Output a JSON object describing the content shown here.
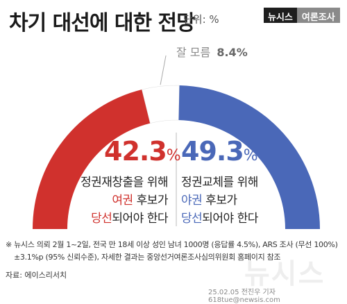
{
  "header": {
    "title": "차기 대선에 대한 전망",
    "unit": "단위: %",
    "badge_brand": "뉴시스",
    "badge_section": "여론조사"
  },
  "chart_data": {
    "type": "pie",
    "title": "차기 대선에 대한 전망",
    "unit": "%",
    "slices": [
      {
        "name": "정권재창출을 위해 여권 후보가 당선되어야 한다",
        "value": 42.3,
        "color": "#d0312d"
      },
      {
        "name": "잘 모름",
        "value": 8.4,
        "color": "#ffffff"
      },
      {
        "name": "정권교체를 위해 야권 후보가 당선되어야 한다",
        "value": 49.3,
        "color": "#4a68b8"
      }
    ],
    "labels": {
      "left_value": "42.3",
      "right_value": "49.3",
      "pct_sign": "%",
      "unknown_label": "잘 모름",
      "unknown_value": "8.4%"
    }
  },
  "left_desc": {
    "line1": "정권재창출을 위해",
    "line2_a": "여권",
    "line2_b": " 후보가",
    "line3_a": "당선",
    "line3_b": "되어야 한다"
  },
  "right_desc": {
    "line1": "정권교체를 위해",
    "line2_a": "야권",
    "line2_b": " 후보가",
    "line3_a": "당선",
    "line3_b": "되어야 한다"
  },
  "footer": {
    "note1": "※ 뉴시스 의뢰 2월 1~2일, 전국 만 18세 이상 성인 남녀 1000명 (응답률 4.5%), ARS 조사 (무선 100%)",
    "note2": "±3.1%p (95% 신뢰수준), 자세한 결과는 중앙선거여론조사심의위원회 홈페이지 참조",
    "source": "자료: 에이스리서치",
    "credit": "25.02.05 전진우 기자 618tue@newsis.com",
    "watermark": "뉴시스"
  },
  "colors": {
    "red": "#d0312d",
    "blue": "#4a68b8",
    "gray": "#8a8a8a"
  }
}
